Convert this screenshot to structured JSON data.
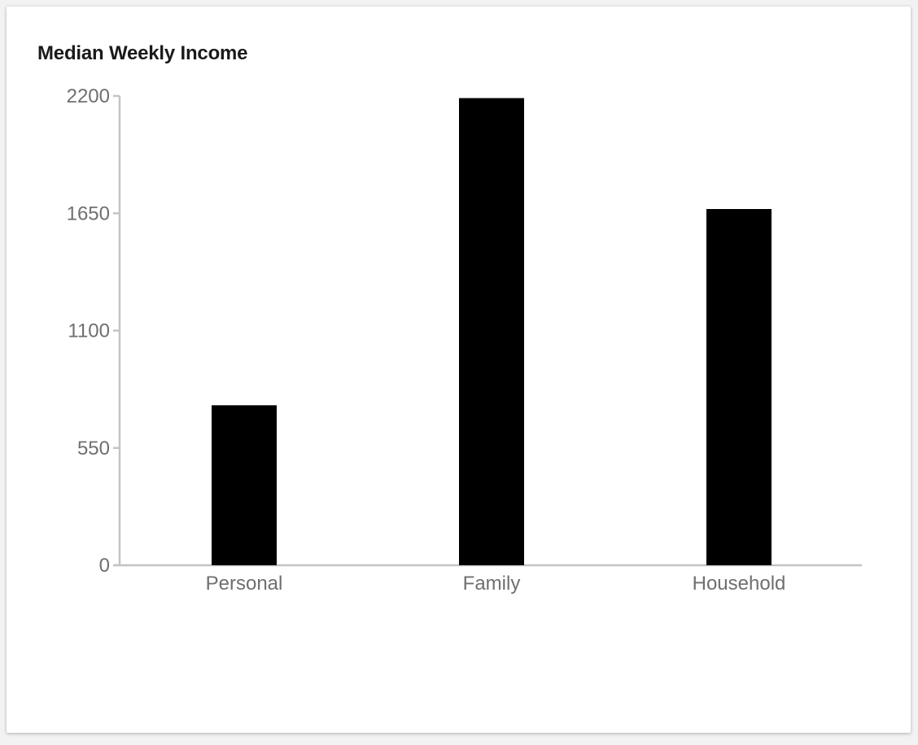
{
  "chart_data": {
    "type": "bar",
    "title": "Median Weekly Income",
    "categories": [
      "Personal",
      "Family",
      "Household"
    ],
    "values": [
      750,
      2190,
      1670
    ],
    "yticks": [
      0,
      550,
      1100,
      1650,
      2200
    ],
    "ylim": [
      0,
      2200
    ],
    "xlabel": "",
    "ylabel": "",
    "grid": false,
    "legend": "none",
    "colors": {
      "bar": "#000000",
      "axis": "#c4c4c4",
      "tick_text": "#6f6f6f",
      "title": "#1a1a1a"
    }
  }
}
